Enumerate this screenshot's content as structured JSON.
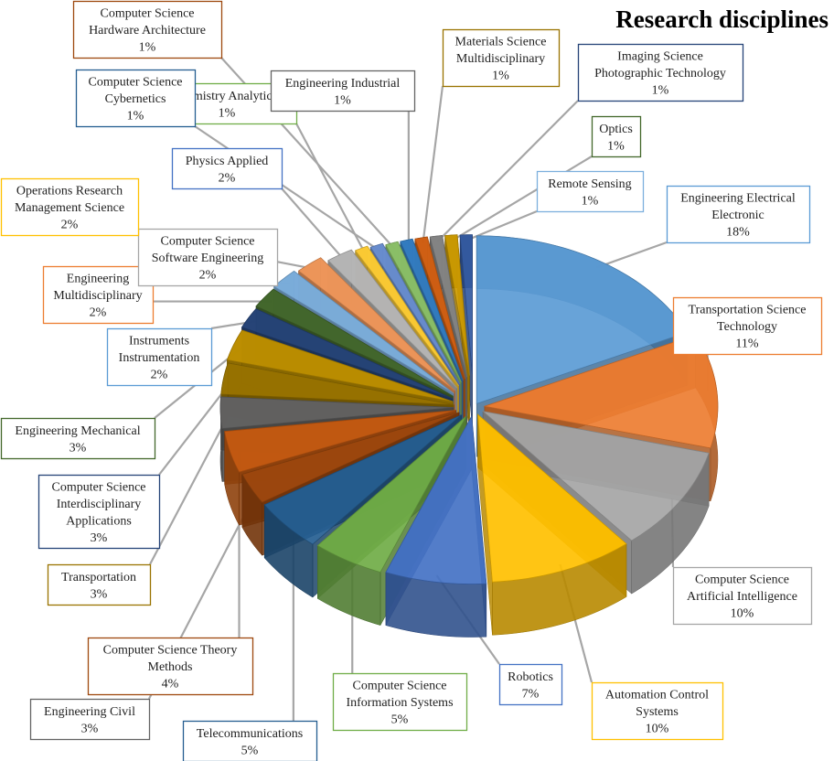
{
  "chart_data": {
    "type": "pie",
    "style": "exploded-3d",
    "title": "Research disciplines",
    "slices": [
      {
        "name": "Engineering Electrical Electronic",
        "lines": [
          "Engineering Electrical",
          "Electronic"
        ],
        "pct_label": "18%",
        "value": 18,
        "color": "#5b9bd5"
      },
      {
        "name": "Transportation Science Technology",
        "lines": [
          "Transportation Science",
          "Technology"
        ],
        "pct_label": "11%",
        "value": 11,
        "color": "#ed7d31"
      },
      {
        "name": "Computer Science Artificial Intelligence",
        "lines": [
          "Computer Science",
          "Artificial Intelligence"
        ],
        "pct_label": "10%",
        "value": 10,
        "color": "#a5a5a5"
      },
      {
        "name": "Automation Control Systems",
        "lines": [
          "Automation Control",
          "Systems"
        ],
        "pct_label": "10%",
        "value": 10,
        "color": "#ffc000"
      },
      {
        "name": "Robotics",
        "lines": [
          "Robotics"
        ],
        "pct_label": "7%",
        "value": 7,
        "color": "#4472c4"
      },
      {
        "name": "Computer Science Information Systems",
        "lines": [
          "Computer Science",
          "Information Systems"
        ],
        "pct_label": "5%",
        "value": 5,
        "color": "#70ad47"
      },
      {
        "name": "Telecommunications",
        "lines": [
          "Telecommunications"
        ],
        "pct_label": "5%",
        "value": 5,
        "color": "#255e91"
      },
      {
        "name": "Engineering Civil",
        "lines": [
          "Engineering Civil"
        ],
        "pct_label": "3%",
        "value": 3,
        "color": "#9e480e"
      },
      {
        "name": "Computer Science Theory Methods",
        "lines": [
          "Computer Science Theory",
          "Methods"
        ],
        "pct_label": "4%",
        "value": 4,
        "color": "#c55a11"
      },
      {
        "name": "Transportation",
        "lines": [
          "Transportation"
        ],
        "pct_label": "3%",
        "value": 3,
        "color": "#636363"
      },
      {
        "name": "Computer Science Interdisciplinary Applications",
        "lines": [
          "Computer Science",
          "Interdisciplinary",
          "Applications"
        ],
        "pct_label": "3%",
        "value": 3,
        "color": "#997300"
      },
      {
        "name": "Engineering Mechanical",
        "lines": [
          "Engineering Mechanical"
        ],
        "pct_label": "3%",
        "value": 3,
        "color": "#bf9000"
      },
      {
        "name": "Instruments Instrumentation",
        "lines": [
          "Instruments",
          "Instrumentation"
        ],
        "pct_label": "2%",
        "value": 2,
        "color": "#264478"
      },
      {
        "name": "Engineering Multidisciplinary",
        "lines": [
          "Engineering",
          "Multidisciplinary"
        ],
        "pct_label": "2%",
        "value": 2,
        "color": "#43682b"
      },
      {
        "name": "Computer Science Software Engineering",
        "lines": [
          "Computer Science",
          "Software Engineering"
        ],
        "pct_label": "2%",
        "value": 2,
        "color": "#7cafdd"
      },
      {
        "name": "Operations Research Management Science",
        "lines": [
          "Operations Research",
          "Management Science"
        ],
        "pct_label": "2%",
        "value": 2,
        "color": "#f1975a"
      },
      {
        "name": "Physics Applied",
        "lines": [
          "Physics Applied"
        ],
        "pct_label": "2%",
        "value": 2,
        "color": "#b7b7b7"
      },
      {
        "name": "Chemistry Analytical",
        "lines": [
          "Chemistry Analytical"
        ],
        "pct_label": "1%",
        "value": 1,
        "color": "#ffcd33"
      },
      {
        "name": "Computer Science Cybernetics",
        "lines": [
          "Computer Science",
          "Cybernetics"
        ],
        "pct_label": "1%",
        "value": 1,
        "color": "#698ed0"
      },
      {
        "name": "Computer Science Hardware Architecture",
        "lines": [
          "Computer Science",
          "Hardware Architecture"
        ],
        "pct_label": "1%",
        "value": 1,
        "color": "#8cc168"
      },
      {
        "name": "Engineering Industrial",
        "lines": [
          "Engineering Industrial"
        ],
        "pct_label": "1%",
        "value": 1,
        "color": "#327dc2"
      },
      {
        "name": "Materials Science Multidisciplinary",
        "lines": [
          "Materials Science",
          "Multidisciplinary"
        ],
        "pct_label": "1%",
        "value": 1,
        "color": "#d26012"
      },
      {
        "name": "Imaging Science Photographic Technology",
        "lines": [
          "Imaging Science",
          "Photographic Technology"
        ],
        "pct_label": "1%",
        "value": 1,
        "color": "#848484"
      },
      {
        "name": "Optics",
        "lines": [
          "Optics"
        ],
        "pct_label": "1%",
        "value": 1,
        "color": "#cc9a00"
      },
      {
        "name": "Remote Sensing",
        "lines": [
          "Remote Sensing"
        ],
        "pct_label": "1%",
        "value": 1,
        "color": "#335aa1"
      }
    ]
  }
}
